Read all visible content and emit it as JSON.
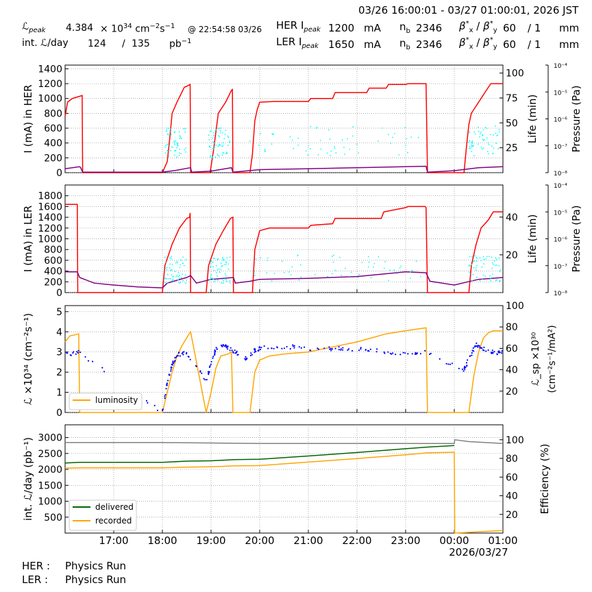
{
  "header": {
    "time_range": "03/26 16:00:01 - 03/27 01:00:01, 2026 JST",
    "lpeak_label": "ℒ",
    "lpeak_sub": "peak",
    "lpeak_value": "4.384",
    "lpeak_mult": "× 10",
    "lpeak_exp": "34",
    "lpeak_unit": "cm",
    "lpeak_unit_exp1": "−2",
    "lpeak_unit_s": "s",
    "lpeak_unit_exp2": "−1",
    "lpeak_time": "@ 22:54:58 03/26",
    "intl_label": "int. ℒ/day",
    "intl_value": "124",
    "intl_slash": "/",
    "intl_total": "135",
    "intl_unit": "pb",
    "intl_unit_exp": "−1",
    "her": {
      "label": "HER I",
      "sub": "peak",
      "current": "1200",
      "unit": "mA",
      "nb_label": "n",
      "nb_sub": "b",
      "nb": "2346",
      "beta_label": "β",
      "beta_x": "x",
      "beta_y": "y",
      "beta_star": "*",
      "beta_sep": "/",
      "beta_x_val": "60",
      "beta_y_val": "/ 1",
      "beta_unit": "mm"
    },
    "ler": {
      "label": "LER I",
      "sub": "peak",
      "current": "1650",
      "unit": "mA",
      "nb_label": "n",
      "nb_sub": "b",
      "nb": "2346",
      "beta_label": "β",
      "beta_x": "x",
      "beta_y": "y",
      "beta_star": "*",
      "beta_sep": "/",
      "beta_x_val": "60",
      "beta_y_val": "/ 1",
      "beta_unit": "mm"
    }
  },
  "footer": {
    "her_label": "HER :",
    "her_status": "Physics Run",
    "ler_label": "LER :",
    "ler_status": "Physics Run"
  },
  "colors": {
    "red": "#ff0000",
    "purple": "#800080",
    "cyan": "#00ffff",
    "orange": "#ffa500",
    "blue": "#0000ff",
    "green": "#006400",
    "gray": "#808080",
    "grid": "#888888"
  },
  "chart_data": [
    {
      "type": "line",
      "name": "HER",
      "ylabel": "I (mA) in HER",
      "ylim": [
        0,
        1450
      ],
      "yticks": [
        0,
        200,
        400,
        600,
        800,
        1000,
        1200,
        1400
      ],
      "y2label": "Life (min)",
      "y2lim": [
        0,
        108
      ],
      "y2ticks": [
        25,
        50,
        75,
        100
      ],
      "y3label": "Pressure (Pa)",
      "y3ticks": [
        "10⁻⁸",
        "10⁻⁷",
        "10⁻⁶",
        "10⁻⁵",
        "10⁻⁴"
      ],
      "xlim": [
        16.0,
        25.0
      ],
      "series": [
        {
          "role": "current",
          "color": "red",
          "x": [
            16.0,
            16.05,
            16.15,
            16.3,
            16.35,
            16.36,
            18.0,
            18.1,
            18.15,
            18.2,
            18.3,
            18.45,
            18.55,
            18.57,
            18.58,
            18.98,
            19.05,
            19.15,
            19.3,
            19.42,
            19.44,
            19.45,
            19.8,
            19.85,
            19.9,
            19.95,
            20.0,
            20.3,
            21.0,
            21.05,
            21.5,
            21.55,
            22.2,
            22.25,
            22.6,
            22.65,
            23.0,
            23.05,
            23.4,
            23.42,
            23.45,
            24.2,
            24.25,
            24.3,
            24.35,
            24.45,
            24.55,
            24.65,
            24.75,
            25.0
          ],
          "y": [
            760,
            950,
            1000,
            1030,
            1040,
            0,
            0,
            150,
            450,
            800,
            950,
            1150,
            1180,
            1190,
            0,
            0,
            300,
            800,
            950,
            1110,
            1120,
            0,
            0,
            250,
            700,
            850,
            950,
            960,
            960,
            1000,
            1000,
            1080,
            1080,
            1140,
            1140,
            1190,
            1190,
            1200,
            1200,
            1200,
            0,
            0,
            350,
            650,
            800,
            900,
            1000,
            1100,
            1200,
            1200
          ]
        },
        {
          "role": "lifetime",
          "color": "purple",
          "x": [
            16.0,
            16.3,
            16.32,
            16.36,
            18.0,
            18.3,
            18.58,
            18.6,
            19.0,
            19.42,
            19.45,
            20.0,
            21.0,
            22.0,
            23.0,
            23.42,
            23.45,
            24.0,
            24.5,
            25.0
          ],
          "y": [
            4,
            6,
            5,
            0.5,
            0.5,
            2.5,
            5,
            0.5,
            1.5,
            5,
            0.5,
            3,
            4,
            5,
            6,
            6.5,
            0.5,
            2,
            5,
            6
          ]
        }
      ]
    },
    {
      "type": "line",
      "name": "LER",
      "ylabel": "I (mA) in LER",
      "ylim": [
        0,
        2000
      ],
      "yticks": [
        0,
        200,
        400,
        600,
        800,
        1000,
        1200,
        1400,
        1600,
        1800
      ],
      "y2label": "Life (min)",
      "y2lim": [
        0,
        57
      ],
      "y2ticks": [
        20,
        40
      ],
      "y3label": "Pressure (Pa)",
      "y3ticks": [
        "10⁻⁸",
        "10⁻⁷",
        "10⁻⁶",
        "10⁻⁵",
        "10⁻⁴"
      ],
      "xlim": [
        16.0,
        25.0
      ],
      "series": [
        {
          "role": "current",
          "color": "red",
          "x": [
            16.0,
            16.25,
            16.26,
            18.0,
            18.05,
            18.2,
            18.35,
            18.5,
            18.56,
            18.57,
            18.58,
            18.9,
            18.95,
            19.1,
            19.25,
            19.4,
            19.45,
            19.46,
            19.5,
            19.85,
            19.9,
            20.0,
            20.2,
            21.0,
            21.05,
            21.5,
            21.55,
            22.5,
            22.55,
            23.0,
            23.05,
            23.4,
            23.42,
            23.45,
            24.3,
            24.35,
            24.45,
            24.55,
            24.7,
            24.8,
            25.0
          ],
          "y": [
            1640,
            1640,
            0,
            0,
            500,
            900,
            1200,
            1380,
            1400,
            1480,
            0,
            0,
            500,
            900,
            1150,
            1380,
            1400,
            0,
            0,
            0,
            800,
            1150,
            1200,
            1200,
            1250,
            1280,
            1380,
            1380,
            1500,
            1580,
            1600,
            1600,
            1580,
            0,
            0,
            500,
            900,
            1200,
            1350,
            1500,
            1500
          ]
        },
        {
          "role": "lifetime",
          "color": "purple",
          "x": [
            16.0,
            16.25,
            16.3,
            16.6,
            17.0,
            17.5,
            18.0,
            18.1,
            18.5,
            18.58,
            18.7,
            19.0,
            19.46,
            19.5,
            19.8,
            20.0,
            21.0,
            22.0,
            23.0,
            23.42,
            23.5,
            24.0,
            24.5,
            25.0
          ],
          "y": [
            11,
            11,
            8,
            5,
            4,
            3,
            2.5,
            5,
            8,
            9,
            5,
            7,
            8,
            5,
            6,
            7,
            7.5,
            8.5,
            11,
            10.5,
            6,
            4,
            7,
            8
          ]
        }
      ]
    },
    {
      "type": "line",
      "name": "Luminosity",
      "ylabel": "ℒ ×10³⁴ (cm⁻²s⁻¹)",
      "ylim": [
        0,
        5.3
      ],
      "yticks": [
        0,
        1,
        2,
        3,
        4,
        5
      ],
      "y2label": "ℒ_sp ×10³⁰",
      "y2label2": "(cm⁻²s⁻¹/mA²)",
      "y2lim": [
        0,
        100
      ],
      "y2ticks": [
        20,
        40,
        60,
        80,
        100
      ],
      "xlim": [
        16.0,
        25.0
      ],
      "legend": {
        "position": "lower-left",
        "entries": [
          {
            "label": "luminosity",
            "color": "orange"
          }
        ]
      },
      "series": [
        {
          "name": "luminosity",
          "color": "orange",
          "x": [
            16.0,
            16.1,
            16.2,
            16.28,
            16.3,
            18.0,
            18.1,
            18.2,
            18.3,
            18.4,
            18.5,
            18.55,
            18.58,
            18.9,
            19.0,
            19.1,
            19.2,
            19.35,
            19.42,
            19.45,
            19.8,
            19.9,
            20.0,
            20.2,
            20.5,
            21.0,
            21.5,
            22.0,
            22.3,
            22.6,
            23.0,
            23.42,
            23.45,
            24.3,
            24.4,
            24.5,
            24.6,
            24.7,
            24.8,
            25.0
          ],
          "y": [
            3.5,
            3.8,
            3.85,
            3.9,
            0,
            0,
            1.0,
            2.0,
            2.8,
            3.3,
            3.7,
            3.9,
            4.0,
            0,
            1.0,
            2.2,
            2.8,
            2.9,
            3.0,
            0,
            0,
            2.0,
            2.6,
            2.8,
            2.9,
            3.0,
            3.25,
            3.5,
            3.7,
            3.9,
            4.05,
            4.2,
            0,
            0,
            1.8,
            3.0,
            3.7,
            3.95,
            4.05,
            4.05
          ]
        },
        {
          "name": "specific",
          "color": "blue",
          "x": [
            16.0,
            16.3,
            18.0,
            18.1,
            18.2,
            18.3,
            18.5,
            18.9,
            19.0,
            19.1,
            19.3,
            19.45,
            19.7,
            19.9,
            20.0,
            20.5,
            21.0,
            21.5,
            22.0,
            22.5,
            23.0,
            23.4,
            24.2,
            24.3,
            24.45,
            24.6,
            24.8,
            25.0
          ],
          "y": [
            55,
            56,
            0,
            28,
            45,
            54,
            56,
            30,
            45,
            60,
            62,
            58,
            50,
            58,
            60,
            62,
            60,
            60,
            59,
            57,
            55,
            56,
            40,
            50,
            64,
            60,
            56,
            56
          ]
        }
      ]
    },
    {
      "type": "line",
      "name": "Integrated",
      "ylabel": "int. ℒ/day (pb⁻¹)",
      "ylim": [
        0,
        3400
      ],
      "yticks": [
        500,
        1000,
        1500,
        2000,
        2500,
        3000
      ],
      "y2label": "Efficiency (%)",
      "y2lim": [
        0,
        116
      ],
      "y2ticks": [
        20,
        40,
        60,
        80,
        100
      ],
      "xlim": [
        16.0,
        25.0
      ],
      "xticks": [
        "17:00",
        "18:00",
        "19:00",
        "20:00",
        "21:00",
        "22:00",
        "23:00",
        "00:00",
        "01:00"
      ],
      "xsub": "2026/03/27",
      "legend": {
        "position": "lower-left",
        "entries": [
          {
            "label": "delivered",
            "color": "green"
          },
          {
            "label": "recorded",
            "color": "orange"
          }
        ]
      },
      "series": [
        {
          "name": "delivered",
          "color": "green",
          "x": [
            16.0,
            16.3,
            18.0,
            18.5,
            19.0,
            19.5,
            20.0,
            21.0,
            22.0,
            22.5,
            23.0,
            23.45,
            24.0
          ],
          "y": [
            2200,
            2220,
            2220,
            2260,
            2270,
            2310,
            2320,
            2420,
            2530,
            2590,
            2650,
            2700,
            2750
          ]
        },
        {
          "name": "recorded",
          "color": "orange",
          "x": [
            16.0,
            16.3,
            18.0,
            18.5,
            19.0,
            19.5,
            20.0,
            21.0,
            22.0,
            22.5,
            23.0,
            23.45,
            24.0,
            24.01,
            25.0
          ],
          "y": [
            2040,
            2050,
            2050,
            2070,
            2080,
            2110,
            2120,
            2230,
            2340,
            2400,
            2460,
            2520,
            2540,
            0,
            80
          ]
        },
        {
          "name": "efficiency",
          "color": "gray",
          "x": [
            16.0,
            18.0,
            20.0,
            22.0,
            23.45,
            24.0,
            24.01,
            24.3,
            25.0
          ],
          "y": [
            97,
            97,
            96,
            96,
            96,
            96,
            100,
            98,
            96
          ]
        }
      ]
    }
  ]
}
